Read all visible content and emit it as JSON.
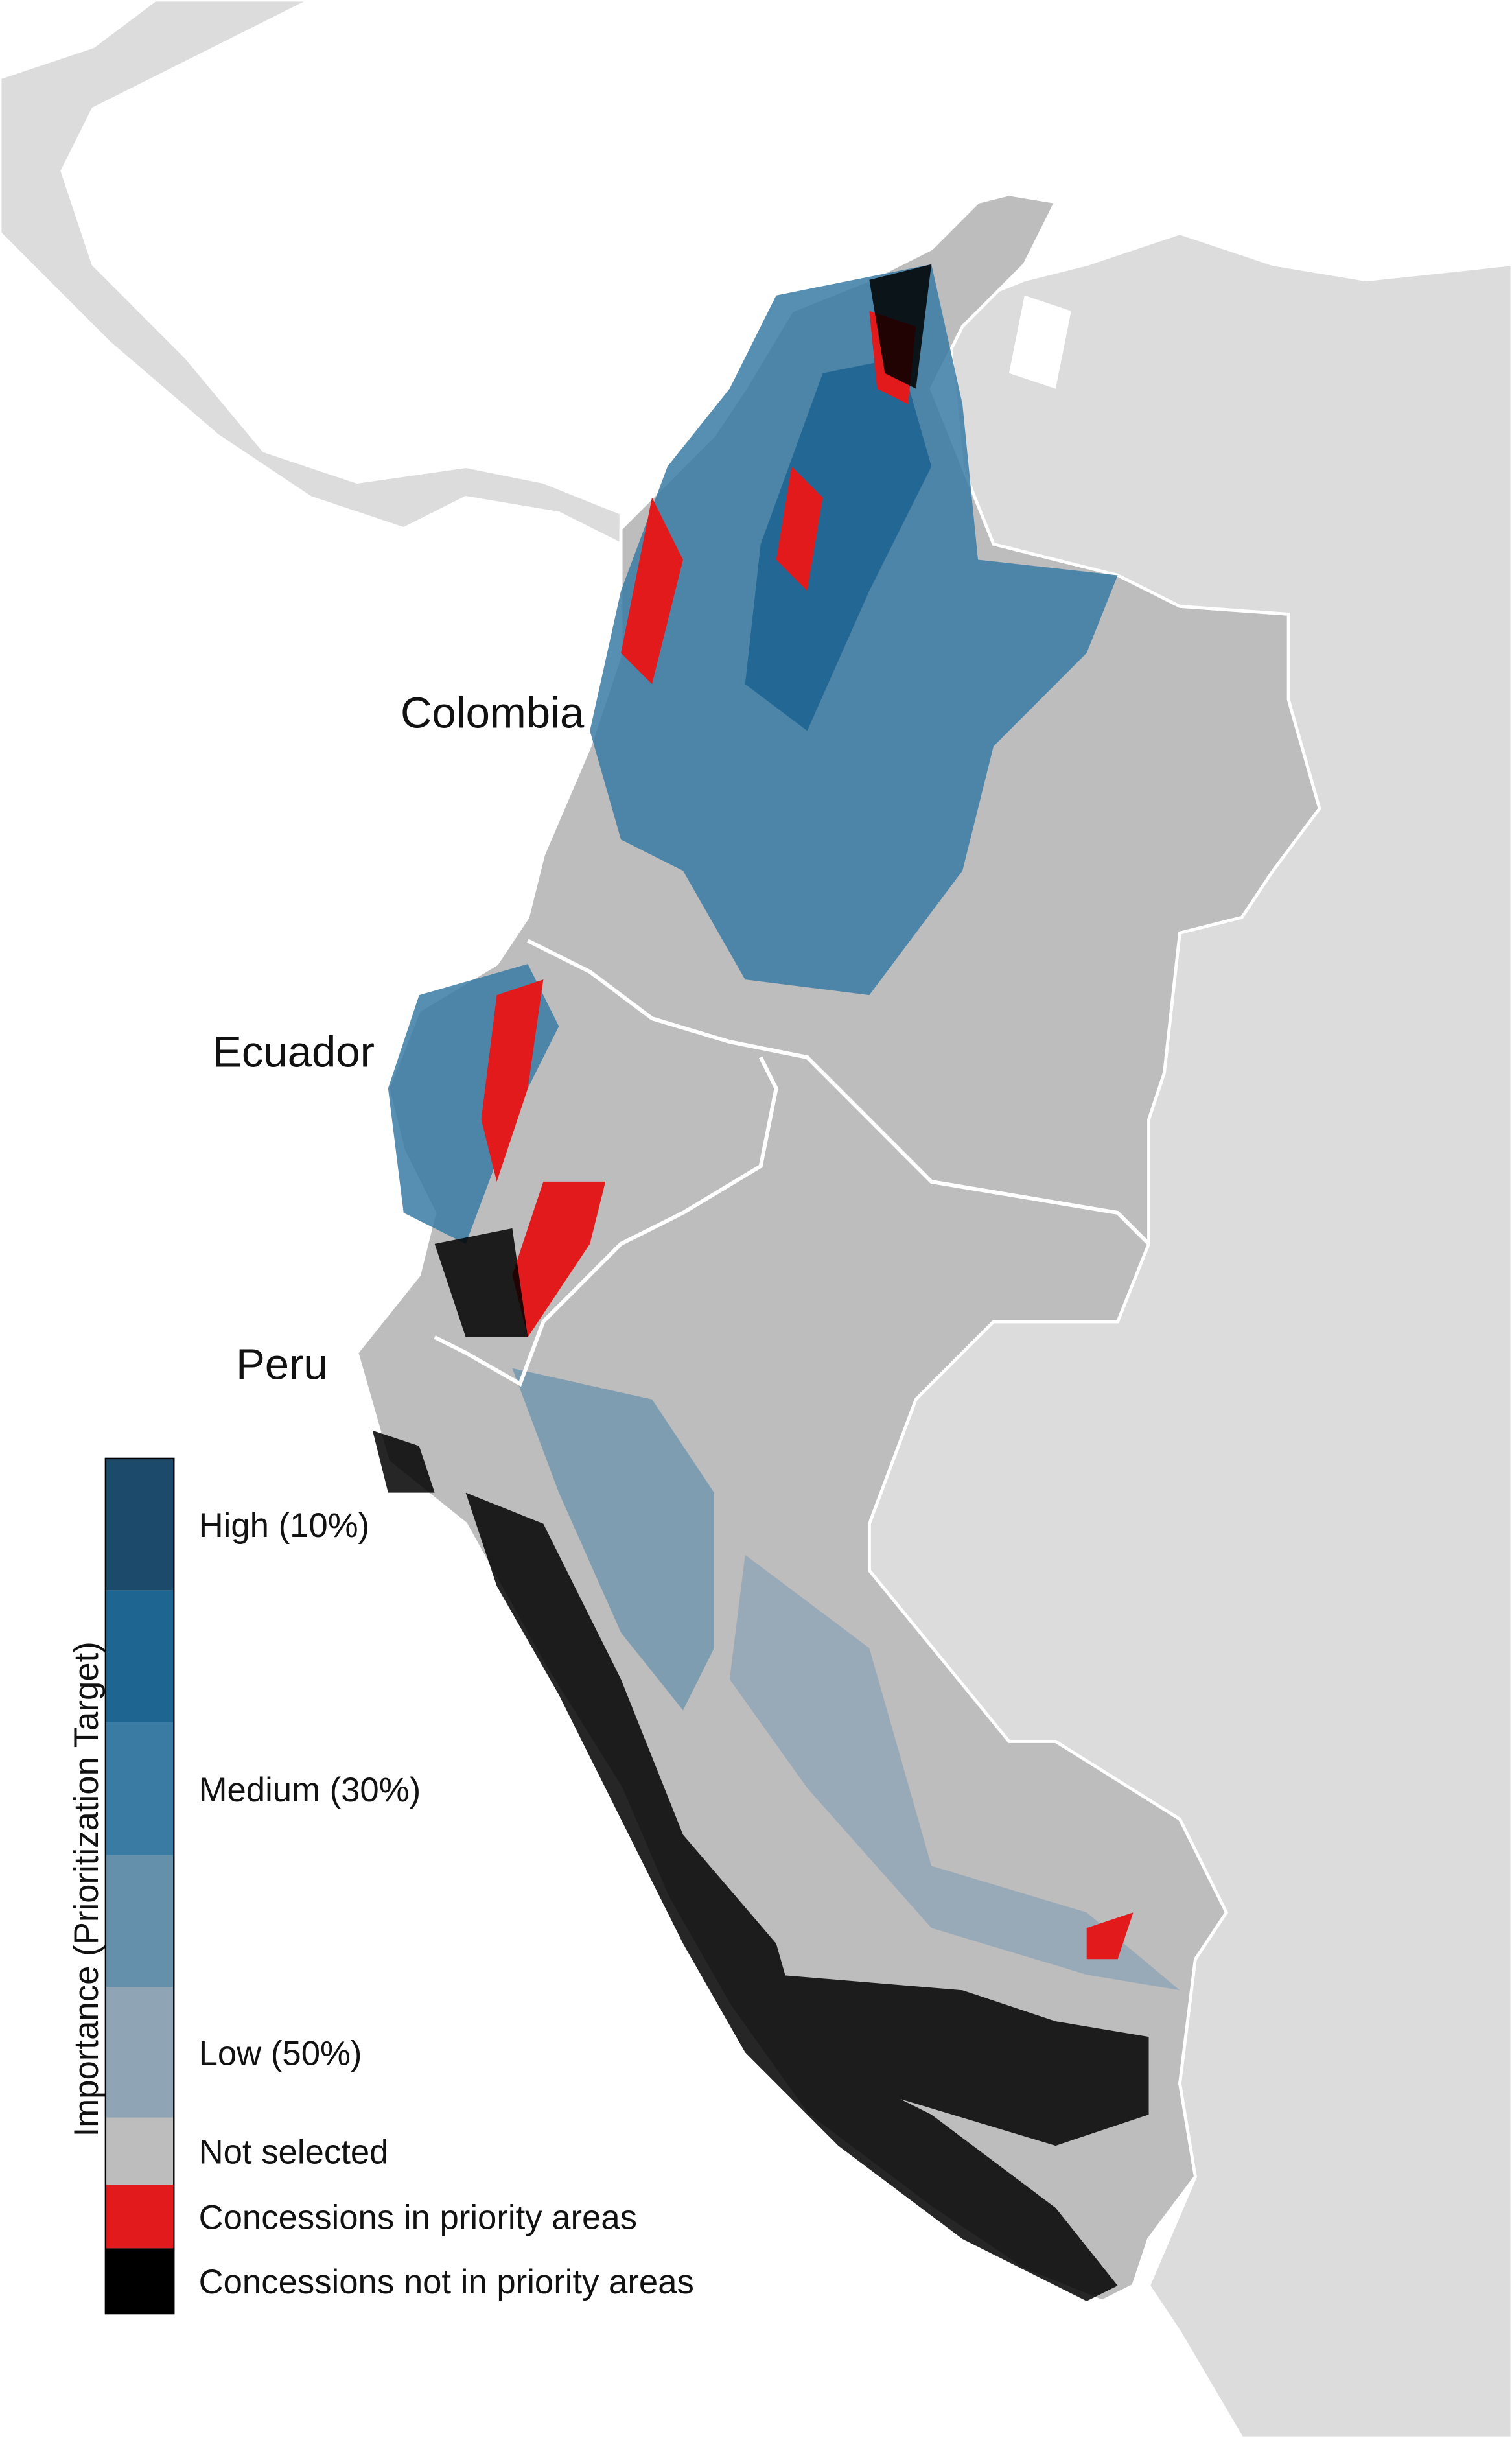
{
  "map": {
    "labels": [
      "Colombia",
      "Ecuador",
      "Peru"
    ],
    "legend": {
      "title": "Importance (Prioritization Target)",
      "entries": [
        {
          "color": "#1b4a6b",
          "label": "High (10%)"
        },
        {
          "color": "#1f6592"
        },
        {
          "color": "#3a7ba4",
          "label": "Medium (30%)"
        },
        {
          "color": "#6490ac"
        },
        {
          "color": "#8fa5b5",
          "label": "Low (50%)"
        },
        {
          "color": "#bdbdbd",
          "label": "Not selected"
        },
        {
          "color": "#e31a1c",
          "label": "Concessions in priority areas"
        },
        {
          "color": "#000000",
          "label": "Concessions not in priority areas"
        }
      ]
    }
  }
}
